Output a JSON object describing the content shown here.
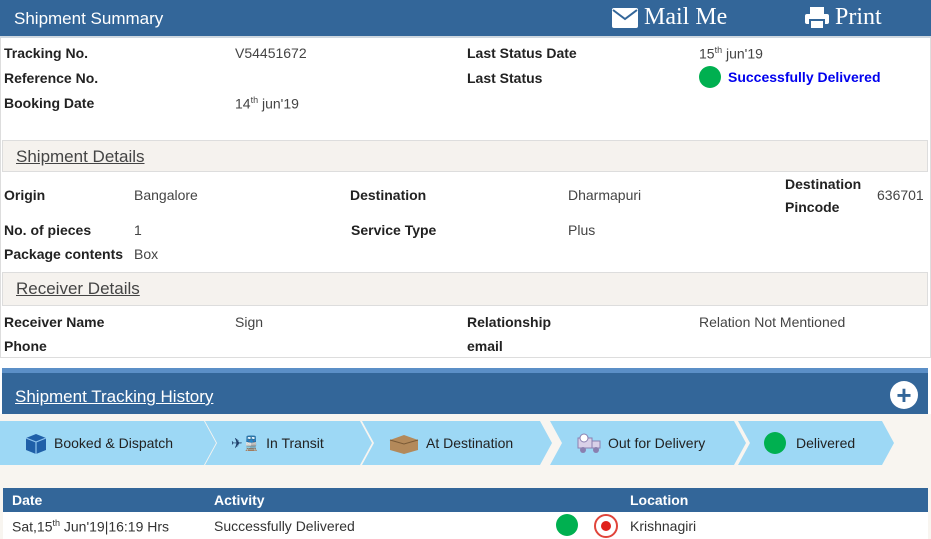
{
  "header": {
    "title": "Shipment Summary",
    "mail_label": "Mail Me",
    "print_label": "Print"
  },
  "summary": {
    "tracking_label": "Tracking No.",
    "tracking_value": "V54451672",
    "reference_label": "Reference No.",
    "booking_label": "Booking Date",
    "booking_day": "14",
    "booking_sup": "th",
    "booking_rest": " jun'19",
    "last_status_date_label": "Last Status Date",
    "last_status_day": "15",
    "last_status_sup": "th",
    "last_status_rest": " jun'19",
    "last_status_label": "Last Status",
    "last_status_value": "Successfully Delivered",
    "status_color": "#00b050",
    "status_text_color": "#0000ee"
  },
  "shipment_details": {
    "title": "Shipment Details",
    "origin_label": "Origin",
    "origin": "Bangalore",
    "destination_label": "Destination",
    "destination": "Dharmapuri",
    "pincode_label_1": "Destination",
    "pincode_label_2": "Pincode",
    "pincode": "636701",
    "pieces_label": "No. of pieces",
    "pieces": "1",
    "service_label": "Service Type",
    "service": "Plus",
    "contents_label": "Package contents",
    "contents": "Box"
  },
  "receiver_details": {
    "title": "Receiver Details",
    "name_label": "Receiver Name",
    "name": "Sign",
    "relationship_label": "Relationship",
    "relationship": "Relation Not Mentioned",
    "phone_label": "Phone",
    "email_label": "email"
  },
  "history": {
    "title": "Shipment Tracking History",
    "steps": [
      {
        "label": "Booked & Dispatch",
        "icon": "box-icon"
      },
      {
        "label": "In Transit",
        "icon": "transport-icon"
      },
      {
        "label": "At Destination",
        "icon": "parcel-icon"
      },
      {
        "label": "Out for Delivery",
        "icon": "delivery-truck-icon"
      },
      {
        "label": "Delivered",
        "icon": "green-dot-icon"
      }
    ],
    "columns": [
      "Date",
      "Activity",
      "Location"
    ],
    "rows": [
      {
        "date_pre": "Sat,15",
        "date_sup": "th",
        "date_post": " Jun'19|16:19 Hrs",
        "activity": "Successfully Delivered",
        "location": "Krishnagiri"
      }
    ]
  },
  "colors": {
    "header": "#336699",
    "step": "#9dd8f5",
    "delivered": "#00b050"
  }
}
